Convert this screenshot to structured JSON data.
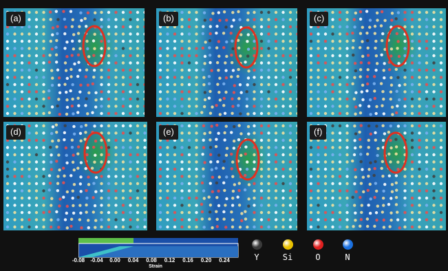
{
  "panels": [
    {
      "label": "(a)"
    },
    {
      "label": "(b)"
    },
    {
      "label": "(c)"
    },
    {
      "label": "(d)"
    },
    {
      "label": "(e)"
    },
    {
      "label": "(f)"
    }
  ],
  "colorbar": {
    "label": "Strain",
    "min": -0.08,
    "max": 0.28,
    "ticks": [
      "-0.08",
      "-0.04",
      "0.00",
      "0.04",
      "0.08",
      "0.12",
      "0.16",
      "0.20",
      "0.24"
    ]
  },
  "legend": [
    {
      "label": "Y",
      "color": "#3a3a3a",
      "icon": "yttrium-atom-icon"
    },
    {
      "label": "Si",
      "color": "#e8c000",
      "icon": "silicon-atom-icon"
    },
    {
      "label": "O",
      "color": "#e02020",
      "icon": "oxygen-atom-icon"
    },
    {
      "label": "N",
      "color": "#1a70e0",
      "icon": "nitrogen-atom-icon"
    }
  ],
  "colors": {
    "background": "#111111",
    "strain_low": "#3a9cc4",
    "strain_high": "#1a4fa8",
    "strain_peak": "#2aa040",
    "highlight_ellipse": "#e03020"
  }
}
